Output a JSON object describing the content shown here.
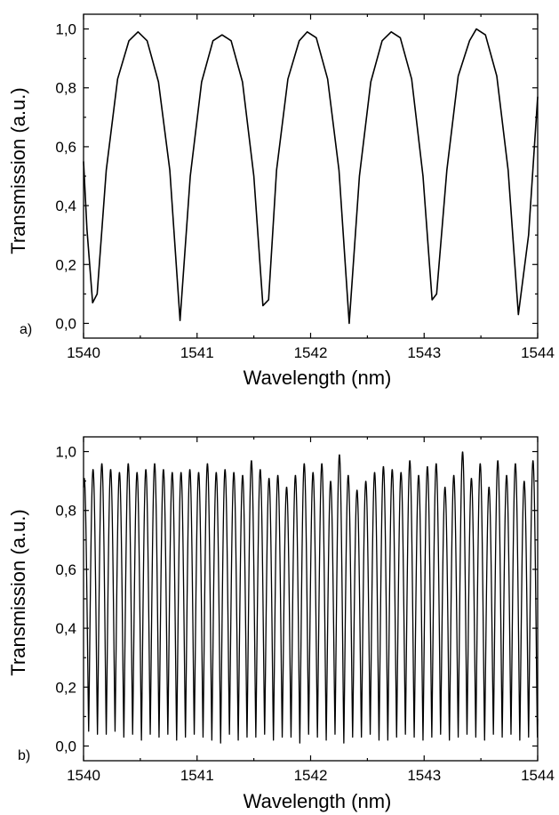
{
  "chart_data": [
    {
      "type": "line",
      "panel_label": "a)",
      "xlabel": "Wavelength (nm)",
      "ylabel": "Transmission (a.u.)",
      "xlim": [
        1540,
        1544
      ],
      "ylim": [
        -0.05,
        1.05
      ],
      "xticks": [
        1540,
        1541,
        1542,
        1543,
        1544
      ],
      "xtick_labels": [
        "1540",
        "1541",
        "1542",
        "1543",
        "1544"
      ],
      "yticks": [
        0.0,
        0.2,
        0.4,
        0.6,
        0.8,
        1.0
      ],
      "ytick_labels": [
        "0,0",
        "0,2",
        "0,4",
        "0,6",
        "0,8",
        "1,0"
      ],
      "grid": false,
      "line_color": "#000000",
      "series": [
        {
          "x": [
            1540.0,
            1540.03,
            1540.08,
            1540.12,
            1540.2,
            1540.3,
            1540.4,
            1540.48,
            1540.56,
            1540.66,
            1540.76,
            1540.85,
            1540.94,
            1541.04,
            1541.14,
            1541.22,
            1541.3,
            1541.4,
            1541.5,
            1541.58,
            1541.63,
            1541.7,
            1541.8,
            1541.9,
            1541.97,
            1542.05,
            1542.15,
            1542.25,
            1542.34,
            1542.43,
            1542.53,
            1542.63,
            1542.71,
            1542.79,
            1542.89,
            1542.99,
            1543.07,
            1543.11,
            1543.2,
            1543.3,
            1543.4,
            1543.46,
            1543.54,
            1543.64,
            1543.74,
            1543.83,
            1543.92,
            1544.0
          ],
          "y": [
            0.55,
            0.32,
            0.07,
            0.1,
            0.52,
            0.83,
            0.96,
            0.99,
            0.96,
            0.82,
            0.52,
            0.01,
            0.5,
            0.82,
            0.96,
            0.98,
            0.96,
            0.82,
            0.5,
            0.06,
            0.08,
            0.52,
            0.83,
            0.96,
            0.99,
            0.97,
            0.83,
            0.52,
            0.0,
            0.5,
            0.82,
            0.96,
            0.99,
            0.97,
            0.83,
            0.5,
            0.08,
            0.1,
            0.52,
            0.84,
            0.96,
            1.0,
            0.98,
            0.84,
            0.52,
            0.03,
            0.3,
            0.77
          ]
        }
      ]
    },
    {
      "type": "line",
      "panel_label": "b)",
      "xlabel": "Wavelength (nm)",
      "ylabel": "Transmission (a.u.)",
      "xlim": [
        1540,
        1544
      ],
      "ylim": [
        -0.05,
        1.05
      ],
      "xticks": [
        1540,
        1541,
        1542,
        1543,
        1544
      ],
      "xtick_labels": [
        "1540",
        "1541",
        "1542",
        "1543",
        "1544"
      ],
      "yticks": [
        0.0,
        0.2,
        0.4,
        0.6,
        0.8,
        1.0
      ],
      "ytick_labels": [
        "0,0",
        "0,2",
        "0,4",
        "0,6",
        "0,8",
        "1,0"
      ],
      "grid": false,
      "line_color": "#000000",
      "fringe_period_nm": 0.0775,
      "first_trough_nm": 1540.045,
      "peak_values": [
        0.94,
        0.96,
        0.94,
        0.93,
        0.96,
        0.93,
        0.94,
        0.96,
        0.94,
        0.93,
        0.93,
        0.94,
        0.93,
        0.96,
        0.93,
        0.94,
        0.93,
        0.92,
        0.97,
        0.94,
        0.91,
        0.92,
        0.88,
        0.92,
        0.96,
        0.93,
        0.96,
        0.9,
        0.99,
        0.92,
        0.87,
        0.9,
        0.93,
        0.95,
        0.94,
        0.93,
        0.97,
        0.92,
        0.95,
        0.96,
        0.88,
        0.92,
        1.0,
        0.91,
        0.96,
        0.88,
        0.97,
        0.92,
        0.96,
        0.9,
        0.97,
        0.9,
        0.91
      ],
      "trough_values": [
        0.05,
        0.04,
        0.04,
        0.05,
        0.03,
        0.04,
        0.02,
        0.04,
        0.03,
        0.04,
        0.02,
        0.03,
        0.04,
        0.03,
        0.02,
        0.01,
        0.04,
        0.02,
        0.03,
        0.03,
        0.04,
        0.02,
        0.03,
        0.03,
        0.01,
        0.04,
        0.03,
        0.02,
        0.04,
        0.01,
        0.03,
        0.03,
        0.04,
        0.02,
        0.02,
        0.03,
        0.04,
        0.03,
        0.02,
        0.03,
        0.04,
        0.02,
        0.03,
        0.04,
        0.03,
        0.02,
        0.04,
        0.03,
        0.04,
        0.02,
        0.03,
        0.03,
        0.04
      ]
    }
  ]
}
